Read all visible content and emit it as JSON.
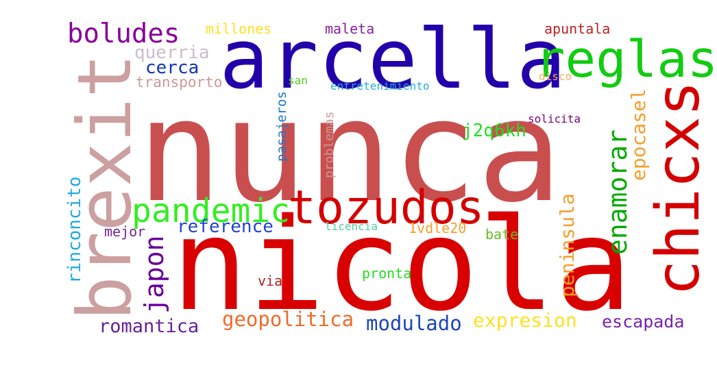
{
  "word_cloud": {
    "words": [
      {
        "id": "nunca",
        "text": "nunca",
        "color": "#c94f4f"
      },
      {
        "id": "nicola",
        "text": "nicola",
        "color": "#d90000"
      },
      {
        "id": "arcella",
        "text": "arcella",
        "color": "#2200aa"
      },
      {
        "id": "brexit",
        "text": "brexit",
        "color": "#cca0a0"
      },
      {
        "id": "reglas",
        "text": "reglas",
        "color": "#11cc11"
      },
      {
        "id": "chicxs",
        "text": "chicxs",
        "color": "#d40000"
      },
      {
        "id": "tozudos",
        "text": "tozudos",
        "color": "#d40000"
      },
      {
        "id": "pandemic",
        "text": "pandemic",
        "color": "#33ee22"
      },
      {
        "id": "boludes",
        "text": "boludes",
        "color": "#880099"
      },
      {
        "id": "enamorar",
        "text": "enamorar",
        "color": "#00aa00"
      },
      {
        "id": "japon",
        "text": "japon",
        "color": "#660099"
      },
      {
        "id": "epocasel",
        "text": "epocasel",
        "color": "#f59e2a"
      },
      {
        "id": "peninsula",
        "text": "peninsula",
        "color": "#f59e2a"
      },
      {
        "id": "geopolitica",
        "text": "geopolitica",
        "color": "#f06a2a"
      },
      {
        "id": "modulado",
        "text": "modulado",
        "color": "#1a44bb"
      },
      {
        "id": "expresion",
        "text": "expresion",
        "color": "#ffe020"
      },
      {
        "id": "escapada",
        "text": "escapada",
        "color": "#7722aa"
      },
      {
        "id": "romantica",
        "text": "romantica",
        "color": "#662299"
      },
      {
        "id": "reference",
        "text": "reference",
        "color": "#2244cc"
      },
      {
        "id": "rinconcito",
        "text": "rinconcito",
        "color": "#22aadd"
      },
      {
        "id": "j2q6kh",
        "text": "j2q6kh",
        "color": "#22dd22"
      },
      {
        "id": "querria",
        "text": "querria",
        "color": "#c9bfc9"
      },
      {
        "id": "cerca",
        "text": "cerca",
        "color": "#1133bb"
      },
      {
        "id": "transporto",
        "text": "transporto",
        "color": "#cc9999"
      },
      {
        "id": "millones",
        "text": "millones",
        "color": "#ffe020"
      },
      {
        "id": "maleta",
        "text": "maleta",
        "color": "#882299"
      },
      {
        "id": "apuntala",
        "text": "apuntala",
        "color": "#bb2222"
      },
      {
        "id": "disco",
        "text": "disco",
        "color": "#f5b060"
      },
      {
        "id": "san",
        "text": "san",
        "color": "#55cc22"
      },
      {
        "id": "entretenimiento",
        "text": "entretenimiento",
        "color": "#22aadd"
      },
      {
        "id": "pasajeros",
        "text": "pasajeros",
        "color": "#1a77cc"
      },
      {
        "id": "problemas",
        "text": "problemas",
        "color": "#cc9999"
      },
      {
        "id": "solicita",
        "text": "solicita",
        "color": "#770077"
      },
      {
        "id": "licencia",
        "text": "licencia",
        "color": "#55cc99"
      },
      {
        "id": "1vdle20",
        "text": "1vdle20",
        "color": "#f59e2a"
      },
      {
        "id": "bate",
        "text": "bate",
        "color": "#66bb22"
      },
      {
        "id": "mejor",
        "text": "mejor",
        "color": "#772299"
      },
      {
        "id": "pronta",
        "text": "pronta",
        "color": "#22dd22"
      },
      {
        "id": "via",
        "text": "via",
        "color": "#aa2222"
      }
    ]
  }
}
